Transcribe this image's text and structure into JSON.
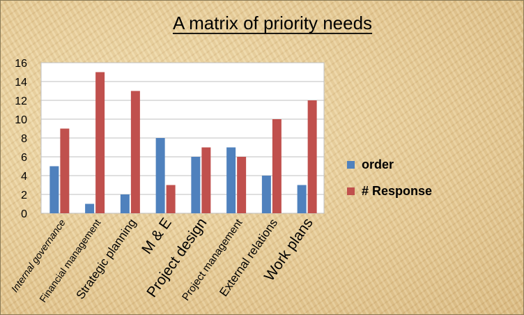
{
  "colors": {
    "order": "#4f81bd",
    "response": "#c0504d",
    "grid": "#bfbfbf",
    "plot_bg": "#ffffff"
  },
  "chart_data": {
    "type": "bar",
    "title": "A matrix of priority needs",
    "categories": [
      "Internal governance",
      "Financial management",
      "Strategic planning",
      "M & E",
      "Project design",
      "Project management",
      "External relations",
      "Work plans"
    ],
    "series": [
      {
        "name": "order",
        "values": [
          5,
          1,
          2,
          8,
          6,
          7,
          4,
          3
        ]
      },
      {
        "name": "# Response",
        "values": [
          9,
          15,
          13,
          3,
          7,
          6,
          10,
          12
        ]
      }
    ],
    "ylim": [
      0,
      16
    ],
    "yticks": [
      0,
      2,
      4,
      6,
      8,
      10,
      12,
      14,
      16
    ],
    "grid": true,
    "legend": "right"
  }
}
